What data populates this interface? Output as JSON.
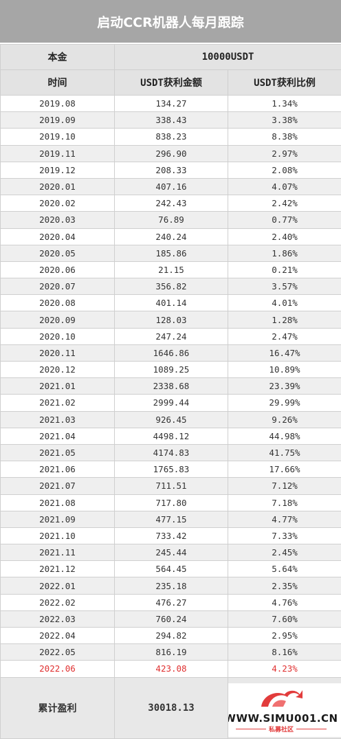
{
  "title": "启动CCR机器人每月跟踪",
  "principal": {
    "label": "本金",
    "value": "10000USDT"
  },
  "headers": {
    "time": "时间",
    "amount": "USDT获利金额",
    "ratio": "USDT获利比例"
  },
  "rows": [
    {
      "time": "2019.08",
      "amount": "134.27",
      "ratio": "1.34%"
    },
    {
      "time": "2019.09",
      "amount": "338.43",
      "ratio": "3.38%"
    },
    {
      "time": "2019.10",
      "amount": "838.23",
      "ratio": "8.38%"
    },
    {
      "time": "2019.11",
      "amount": "296.90",
      "ratio": "2.97%"
    },
    {
      "time": "2019.12",
      "amount": "208.33",
      "ratio": "2.08%"
    },
    {
      "time": "2020.01",
      "amount": "407.16",
      "ratio": "4.07%"
    },
    {
      "time": "2020.02",
      "amount": "242.43",
      "ratio": "2.42%"
    },
    {
      "time": "2020.03",
      "amount": "76.89",
      "ratio": "0.77%"
    },
    {
      "time": "2020.04",
      "amount": "240.24",
      "ratio": "2.40%"
    },
    {
      "time": "2020.05",
      "amount": "185.86",
      "ratio": "1.86%"
    },
    {
      "time": "2020.06",
      "amount": "21.15",
      "ratio": "0.21%"
    },
    {
      "time": "2020.07",
      "amount": "356.82",
      "ratio": "3.57%"
    },
    {
      "time": "2020.08",
      "amount": "401.14",
      "ratio": "4.01%"
    },
    {
      "time": "2020.09",
      "amount": "128.03",
      "ratio": "1.28%"
    },
    {
      "time": "2020.10",
      "amount": "247.24",
      "ratio": "2.47%"
    },
    {
      "time": "2020.11",
      "amount": "1646.86",
      "ratio": "16.47%"
    },
    {
      "time": "2020.12",
      "amount": "1089.25",
      "ratio": "10.89%"
    },
    {
      "time": "2021.01",
      "amount": "2338.68",
      "ratio": "23.39%"
    },
    {
      "time": "2021.02",
      "amount": "2999.44",
      "ratio": "29.99%"
    },
    {
      "time": "2021.03",
      "amount": "926.45",
      "ratio": "9.26%"
    },
    {
      "time": "2021.04",
      "amount": "4498.12",
      "ratio": "44.98%"
    },
    {
      "time": "2021.05",
      "amount": "4174.83",
      "ratio": "41.75%"
    },
    {
      "time": "2021.06",
      "amount": "1765.83",
      "ratio": "17.66%"
    },
    {
      "time": "2021.07",
      "amount": "711.51",
      "ratio": "7.12%"
    },
    {
      "time": "2021.08",
      "amount": "717.80",
      "ratio": "7.18%"
    },
    {
      "time": "2021.09",
      "amount": "477.15",
      "ratio": "4.77%"
    },
    {
      "time": "2021.10",
      "amount": "733.42",
      "ratio": "7.33%"
    },
    {
      "time": "2021.11",
      "amount": "245.44",
      "ratio": "2.45%"
    },
    {
      "time": "2021.12",
      "amount": "564.45",
      "ratio": "5.64%"
    },
    {
      "time": "2022.01",
      "amount": "235.18",
      "ratio": "2.35%"
    },
    {
      "time": "2022.02",
      "amount": "476.27",
      "ratio": "4.76%"
    },
    {
      "time": "2022.03",
      "amount": "760.24",
      "ratio": "7.60%"
    },
    {
      "time": "2022.04",
      "amount": "294.82",
      "ratio": "2.95%"
    },
    {
      "time": "2022.05",
      "amount": "816.19",
      "ratio": "8.16%"
    },
    {
      "time": "2022.06",
      "amount": "423.08",
      "ratio": "4.23%",
      "highlight": true
    }
  ],
  "total": {
    "label": "累计盈利",
    "value": "30018.13"
  },
  "watermark": {
    "text": "WWW.SIMU001.CN",
    "sub": "私募社区",
    "icon": "simu-logo-icon"
  },
  "colors": {
    "highlight": "#e03030",
    "title_bg": "#a6a6a6",
    "header_bg": "#e3e3e3",
    "stripe": "#efefef"
  }
}
